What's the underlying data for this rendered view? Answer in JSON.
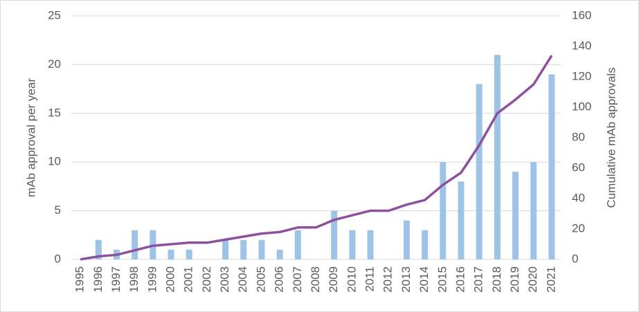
{
  "chart_data": {
    "type": "bar",
    "y_label": "mAb approval per year",
    "y2_label": "Cumulative mAb approvals",
    "categories": [
      "1995",
      "1996",
      "1997",
      "1998",
      "1999",
      "2000",
      "2001",
      "2002",
      "2003",
      "2004",
      "2005",
      "2006",
      "2007",
      "2008",
      "2009",
      "2010",
      "2011",
      "2012",
      "2013",
      "2014",
      "2015",
      "2016",
      "2017",
      "2018",
      "2019",
      "2020",
      "2021"
    ],
    "series": [
      {
        "type": "bar",
        "color": "#9dc3e6",
        "axis": "y",
        "values": [
          0,
          2,
          1,
          3,
          3,
          1,
          1,
          0,
          2,
          2,
          2,
          1,
          3,
          0,
          5,
          3,
          3,
          0,
          4,
          3,
          10,
          8,
          18,
          21,
          9,
          10,
          19
        ]
      },
      {
        "type": "line",
        "color": "#8e4fa0",
        "axis": "y2",
        "values": [
          0,
          2,
          3,
          6,
          9,
          10,
          11,
          11,
          13,
          15,
          17,
          18,
          21,
          21,
          26,
          29,
          32,
          32,
          36,
          39,
          49,
          57,
          75,
          96,
          105,
          115,
          134
        ]
      }
    ],
    "ylim": [
      0,
      25
    ],
    "yticks": [
      0,
      5,
      10,
      15,
      20,
      25
    ],
    "y2lim": [
      0,
      160
    ],
    "y2ticks": [
      0,
      20,
      40,
      60,
      80,
      100,
      120,
      140,
      160
    ],
    "grid": true
  }
}
